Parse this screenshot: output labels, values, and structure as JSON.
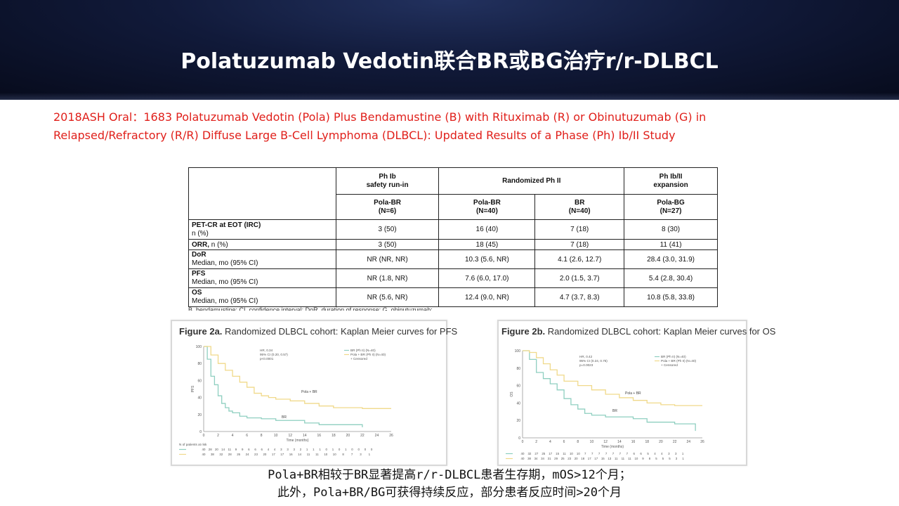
{
  "slide": {
    "title": "Polatuzumab Vedotin联合BR或BG治疗r/r-DLBCL",
    "subtitle_line1": "2018ASH Oral：1683 Polatuzumab Vedotin (Pola) Plus Bendamustine (B) with Rituximab (R) or Obinutuzumab (G) in",
    "subtitle_line2": "Relapsed/Refractory (R/R) Diffuse Large B-Cell Lymphoma (DLBCL): Updated Results of a Phase (Ph) Ib/II Study",
    "colors": {
      "title_bg": "#0b1230",
      "title_text": "#ffffff",
      "subtitle": "#e0201b",
      "km_br": "#8fcfc0",
      "km_pola_br": "#f0d98a"
    }
  },
  "table": {
    "group_headers": {
      "ph1b_l1": "Ph Ib",
      "ph1b_l2": "safety run-in",
      "rand": "Randomized Ph II",
      "exp_l1": "Ph Ib/II",
      "exp_l2": "expansion"
    },
    "arms": [
      {
        "name": "Pola-BR",
        "n": "(N=6)"
      },
      {
        "name": "Pola-BR",
        "n": "(N=40)"
      },
      {
        "name": "BR",
        "n": "(N=40)"
      },
      {
        "name": "Pola-BG",
        "n": "(N=27)"
      }
    ],
    "rows": [
      {
        "label": "PET-CR at EOT (IRC)",
        "sub": "n (%)",
        "values": [
          "3 (50)",
          "16 (40)",
          "7 (18)",
          "8 (30)"
        ]
      },
      {
        "label": "ORR,",
        "sub": " n (%)",
        "values": [
          "3 (50)",
          "18 (45)",
          "7 (18)",
          "11 (41)"
        ]
      },
      {
        "label": "DoR",
        "sub": "Median, mo (95% CI)",
        "values": [
          "NR (NR, NR)",
          "10.3 (5.6, NR)",
          "4.1 (2.6, 12.7)",
          "28.4 (3.0, 31.9)"
        ]
      },
      {
        "label": "PFS",
        "sub": "Median, mo (95% CI)",
        "values": [
          "NR (1.8, NR)",
          "7.6 (6.0, 17.0)",
          "2.0 (1.5, 3.7)",
          "5.4 (2.8, 30.4)"
        ]
      },
      {
        "label": "OS",
        "sub": "Median, mo (95% CI)",
        "values": [
          "NR (5.6, NR)",
          "12.4 (9.0, NR)",
          "4.7 (3.7, 8.3)",
          "10.8 (5.8, 33.8)"
        ]
      }
    ],
    "footnote": "B, bendamustine; CI, confidence interval; DoR, duration of response; G, obinutuzumab;"
  },
  "figures": [
    {
      "title_bold": "Figure 2a.",
      "title_rest": " Randomized DLBCL cohort: Kaplan Meier curves for PFS",
      "stats": [
        "HR, 0.34",
        "95% CI (0.20, 0.57)",
        "p<0.0001"
      ],
      "legend": [
        "BR (Ph II) (N=40)",
        "Pola + BR (Ph II) (N=40)",
        "+ Censored"
      ],
      "ylabel": "PFS",
      "xlabel": "Time (months)",
      "risk_title": "N of patients at risk",
      "curve_label_pola": "Pola + BR",
      "curve_label_br": "BR",
      "chart_data": {
        "type": "line",
        "xlim": [
          0,
          26
        ],
        "ylim": [
          0,
          100
        ],
        "x_ticks": [
          0,
          2,
          4,
          6,
          8,
          10,
          12,
          14,
          16,
          18,
          20,
          22,
          24,
          26
        ],
        "y_ticks": [
          0,
          20,
          40,
          60,
          80,
          100
        ],
        "series": [
          {
            "name": "BR (Ph II) (N=40)",
            "x": [
              0,
              0.5,
              1,
              1.5,
              2,
              2.5,
              3,
              3.5,
              4,
              5,
              6,
              7,
              8,
              9,
              10,
              12,
              14,
              16,
              18,
              20,
              22
            ],
            "y": [
              100,
              85,
              65,
              55,
              42,
              33,
              28,
              24,
              22,
              18,
              16,
              16,
              15,
              15,
              13,
              13,
              10,
              8,
              8,
              8,
              5
            ]
          },
          {
            "name": "Pola + BR (Ph II) (N=40)",
            "x": [
              0,
              1,
              2,
              3,
              4,
              5,
              6,
              7,
              8,
              9,
              10,
              12,
              14,
              16,
              18,
              20,
              22,
              24,
              26
            ],
            "y": [
              100,
              90,
              80,
              72,
              65,
              58,
              52,
              45,
              42,
              40,
              38,
              36,
              33,
              30,
              28,
              28,
              27,
              27,
              27
            ]
          }
        ],
        "risk_table": [
          {
            "name": "BR",
            "values": [
              "40",
              "28",
              "20",
              "14",
              "11",
              "9",
              "9",
              "6",
              "6",
              "6",
              "4",
              "4",
              "3",
              "3",
              "3",
              "2",
              "1",
              "1",
              "1",
              "0",
              "1",
              "0",
              "1",
              "0",
              "0",
              "0",
              "0"
            ]
          },
          {
            "name": "Pola + BR",
            "values": [
              "40",
              "38",
              "32",
              "28",
              "26",
              "24",
              "23",
              "20",
              "17",
              "17",
              "16",
              "14",
              "11",
              "11",
              "10",
              "10",
              "8",
              "7",
              "3",
              "1"
            ]
          }
        ]
      }
    },
    {
      "title_bold": "Figure 2b.",
      "title_rest": " Randomized DLBCL cohort: Kaplan Meier curves for OS",
      "stats": [
        "HR, 0.42",
        "95% CI (0.24, 0.75)",
        "p=0.0023"
      ],
      "legend": [
        "BR (Ph II) (N=40)",
        "Pola + BR (Ph II) (N=40)",
        "+ Censored"
      ],
      "ylabel": "OS",
      "xlabel": "Time (months)",
      "risk_title": "",
      "curve_label_pola": "Pola + BR",
      "curve_label_br": "BR",
      "chart_data": {
        "type": "line",
        "xlim": [
          0,
          26
        ],
        "ylim": [
          0,
          100
        ],
        "x_ticks": [
          0,
          2,
          4,
          6,
          8,
          10,
          12,
          14,
          16,
          18,
          20,
          22,
          24,
          26
        ],
        "y_ticks": [
          0,
          20,
          40,
          60,
          80,
          100
        ],
        "series": [
          {
            "name": "BR (Ph II) (N=40)",
            "x": [
              0,
              1,
              2,
              3,
              4,
              5,
              6,
              7,
              8,
              9,
              10,
              12,
              14,
              16,
              18,
              20,
              22,
              24,
              25
            ],
            "y": [
              100,
              90,
              75,
              68,
              62,
              55,
              45,
              38,
              33,
              28,
              26,
              24,
              24,
              22,
              18,
              18,
              16,
              16,
              8
            ]
          },
          {
            "name": "Pola + BR (Ph II) (N=40)",
            "x": [
              0,
              1,
              2,
              3,
              4,
              5,
              6,
              8,
              10,
              12,
              14,
              16,
              18,
              20,
              22,
              24,
              26
            ],
            "y": [
              100,
              98,
              92,
              85,
              78,
              72,
              65,
              60,
              55,
              50,
              46,
              43,
              40,
              38,
              37,
              37,
              37
            ]
          }
        ],
        "risk_table": [
          {
            "name": "BR",
            "values": [
              "40",
              "32",
              "27",
              "25",
              "17",
              "15",
              "11",
              "10",
              "10",
              "7",
              "7",
              "7",
              "7",
              "7",
              "7",
              "7",
              "6",
              "6",
              "5",
              "4",
              "4",
              "3",
              "3",
              "1"
            ]
          },
          {
            "name": "Pola + BR",
            "values": [
              "40",
              "38",
              "34",
              "34",
              "31",
              "29",
              "25",
              "23",
              "20",
              "18",
              "17",
              "17",
              "15",
              "13",
              "11",
              "11",
              "11",
              "10",
              "9",
              "8",
              "5",
              "5",
              "5",
              "3",
              "1"
            ]
          }
        ]
      }
    }
  ],
  "bottom": {
    "line1": "Pola+BR相较于BR显著提高r/r-DLBCL患者生存期，mOS>12个月；",
    "line2": "此外，Pola+BR/BG可获得持续反应，部分患者反应时间>20个月"
  }
}
